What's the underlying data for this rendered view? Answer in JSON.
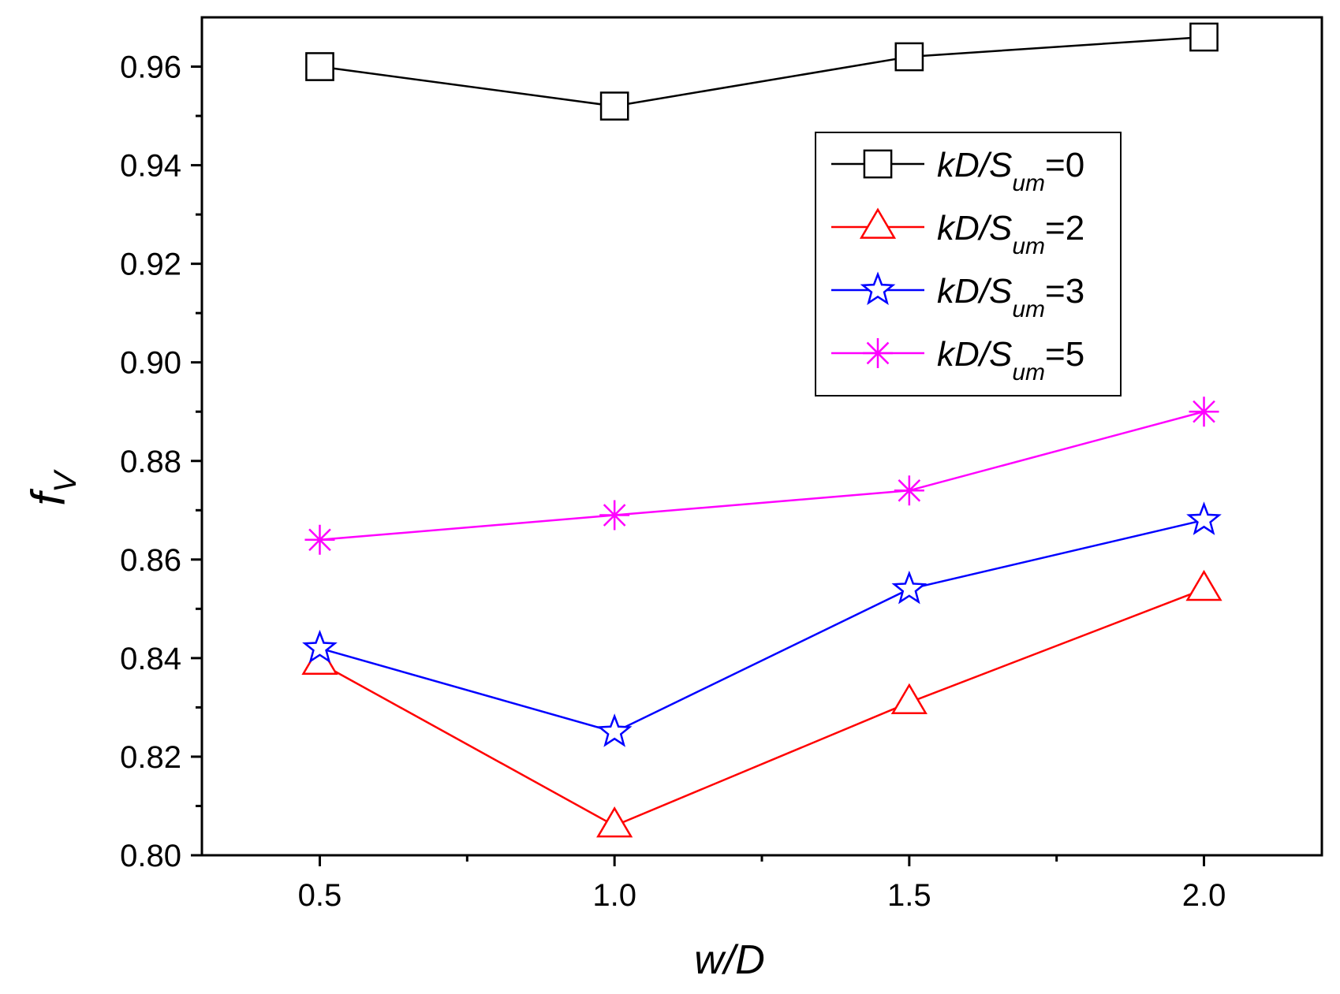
{
  "chart_data": {
    "type": "line",
    "title": "",
    "xlabel": "w/D",
    "ylabel_main": "f",
    "ylabel_sub": "V",
    "xlim": [
      0.3,
      2.2
    ],
    "ylim": [
      0.8,
      0.97
    ],
    "grid": false,
    "legend_position": "top-right",
    "x": [
      0.5,
      1.0,
      1.5,
      2.0
    ],
    "x_ticks": [
      "0.5",
      "1.0",
      "1.5",
      "2.0"
    ],
    "y_ticks": [
      "0.80",
      "0.82",
      "0.84",
      "0.86",
      "0.88",
      "0.90",
      "0.92",
      "0.94",
      "0.96"
    ],
    "series": [
      {
        "name": "kD/S_um=0",
        "label_main": "kD/S",
        "label_sub": "um",
        "label_tail": "=0",
        "color": "#000000",
        "marker": "square",
        "values": [
          0.96,
          0.952,
          0.962,
          0.966
        ]
      },
      {
        "name": "kD/S_um=2",
        "label_main": "kD/S",
        "label_sub": "um",
        "label_tail": "=2",
        "color": "#ff0000",
        "marker": "triangle",
        "values": [
          0.839,
          0.806,
          0.831,
          0.854
        ]
      },
      {
        "name": "kD/S_um=3",
        "label_main": "kD/S",
        "label_sub": "um",
        "label_tail": "=3",
        "color": "#0000ff",
        "marker": "star",
        "values": [
          0.842,
          0.825,
          0.854,
          0.868
        ]
      },
      {
        "name": "kD/S_um=5",
        "label_main": "kD/S",
        "label_sub": "um",
        "label_tail": "=5",
        "color": "#ff00ff",
        "marker": "asterisk",
        "values": [
          0.864,
          0.869,
          0.874,
          0.89
        ]
      }
    ]
  }
}
